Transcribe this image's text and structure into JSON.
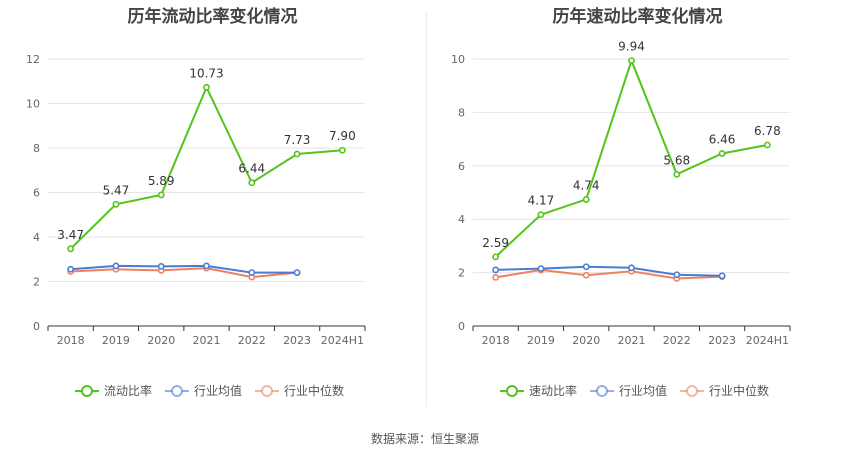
{
  "source": "数据来源：恒生聚源",
  "chart_data": [
    {
      "type": "line",
      "title": "历年流动比率变化情况",
      "categories": [
        "2018",
        "2019",
        "2020",
        "2021",
        "2022",
        "2023",
        "2024H1"
      ],
      "ylim": [
        0,
        12
      ],
      "yticks": [
        0,
        2,
        4,
        6,
        8,
        10,
        12
      ],
      "grid": true,
      "legend_position": "bottom",
      "series": [
        {
          "name": "流动比率",
          "color": "#52c41a",
          "show_labels": true,
          "values": [
            3.47,
            5.47,
            5.89,
            10.73,
            6.44,
            7.73,
            7.9
          ],
          "labels": [
            "3.47",
            "5.47",
            "5.89",
            "10.73",
            "6.44",
            "7.73",
            "7.90"
          ]
        },
        {
          "name": "行业均值",
          "color": "#4a7bd6",
          "show_labels": false,
          "values": [
            2.55,
            2.7,
            2.68,
            2.7,
            2.4,
            2.4,
            null
          ]
        },
        {
          "name": "行业中位数",
          "color": "#f08060",
          "show_labels": false,
          "values": [
            2.45,
            2.55,
            2.5,
            2.6,
            2.2,
            2.4,
            null
          ]
        }
      ]
    },
    {
      "type": "line",
      "title": "历年速动比率变化情况",
      "categories": [
        "2018",
        "2019",
        "2020",
        "2021",
        "2022",
        "2023",
        "2024H1"
      ],
      "ylim": [
        0,
        10
      ],
      "yticks": [
        0,
        2,
        4,
        6,
        8,
        10
      ],
      "grid": true,
      "legend_position": "bottom",
      "series": [
        {
          "name": "速动比率",
          "color": "#52c41a",
          "show_labels": true,
          "values": [
            2.59,
            4.17,
            4.74,
            9.94,
            5.68,
            6.46,
            6.78
          ],
          "labels": [
            "2.59",
            "4.17",
            "4.74",
            "9.94",
            "5.68",
            "6.46",
            "6.78"
          ]
        },
        {
          "name": "行业均值",
          "color": "#4a7bd6",
          "show_labels": false,
          "values": [
            2.1,
            2.15,
            2.22,
            2.18,
            1.92,
            1.88,
            null
          ]
        },
        {
          "name": "行业中位数",
          "color": "#f08060",
          "show_labels": false,
          "values": [
            1.82,
            2.1,
            1.9,
            2.05,
            1.78,
            1.85,
            null
          ]
        }
      ]
    }
  ]
}
